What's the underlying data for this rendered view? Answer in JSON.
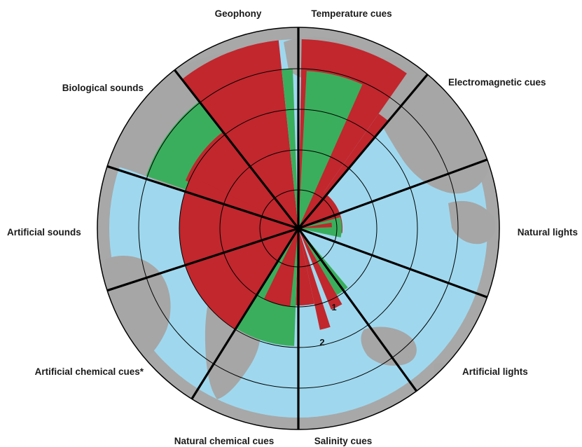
{
  "colors": {
    "ocean": "#9fd8ee",
    "land": "#a6a6a6",
    "rim": "#a8a8a8",
    "red": "#c1272d",
    "green": "#3aae5c",
    "line": "#000000"
  },
  "categories": [
    {
      "key": "temperature",
      "label": "Temperature cues"
    },
    {
      "key": "electromagnetic",
      "label": "Electromagnetic cues"
    },
    {
      "key": "natural_lights",
      "label": "Natural lights"
    },
    {
      "key": "artificial_lights",
      "label": "Artificial lights"
    },
    {
      "key": "salinity",
      "label": "Salinity cues"
    },
    {
      "key": "natural_chemical",
      "label": "Natural chemical cues"
    },
    {
      "key": "artificial_chemical",
      "label": "Artificial chemical cues*"
    },
    {
      "key": "artificial_sounds",
      "label": "Artificial sounds"
    },
    {
      "key": "biological_sounds",
      "label": "Biological sounds"
    },
    {
      "key": "geophony",
      "label": "Geophony"
    }
  ],
  "annotations": {
    "marker_1": "1",
    "marker_2": "2"
  }
}
